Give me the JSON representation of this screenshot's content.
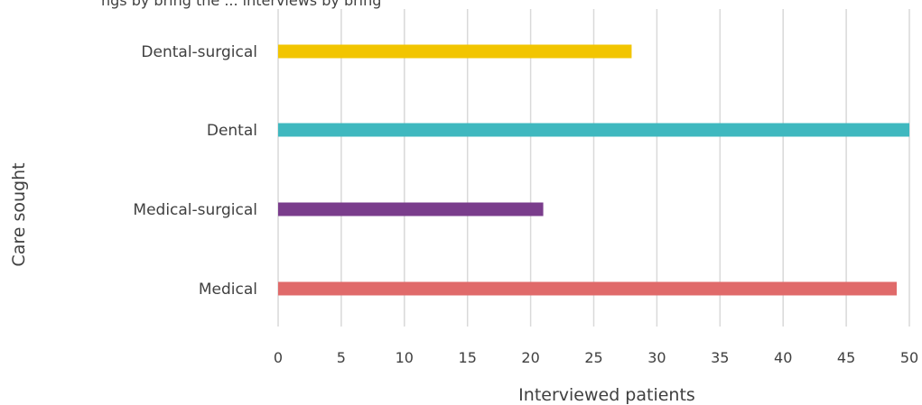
{
  "page_text": {
    "top_partial": "ngs by bring the ... interviews by bring"
  },
  "chart_data": {
    "type": "bar",
    "orientation": "horizontal",
    "categories": [
      "Dental-surgical",
      "Dental",
      "Medical-surgical",
      "Medical"
    ],
    "values": [
      28,
      50,
      21,
      49
    ],
    "colors": [
      "#f2c500",
      "#3fb8bf",
      "#7a3d8c",
      "#e06a6a"
    ],
    "xlabel": "Interviewed patients",
    "ylabel": "Care sought",
    "xlim": [
      0,
      50
    ],
    "xticks": [
      0,
      5,
      10,
      15,
      20,
      25,
      30,
      35,
      40,
      45,
      50
    ],
    "grid": true
  }
}
